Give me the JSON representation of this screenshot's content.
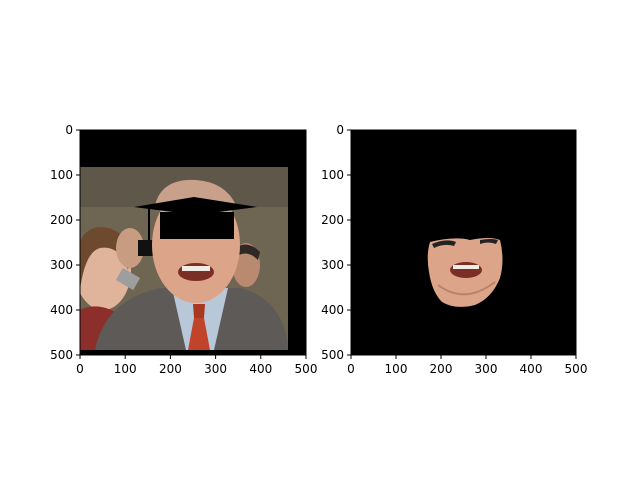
{
  "chart_data": [
    {
      "type": "image",
      "title": "",
      "xlabel": "",
      "ylabel": "",
      "xlim": [
        0,
        500
      ],
      "ylim": [
        500,
        0
      ],
      "xticks": [
        0,
        100,
        200,
        300,
        400,
        500
      ],
      "yticks": [
        0,
        100,
        200,
        300,
        400,
        500
      ],
      "xticklabels": [
        "0",
        "100",
        "200",
        "300",
        "400",
        "500"
      ],
      "yticklabels": [
        "0",
        "100",
        "200",
        "300",
        "400",
        "500"
      ],
      "grid": false,
      "content": "photo of smiling man in suit with red tie and a black graduation-cap mask over the eyes, other people in background",
      "background_color": "#000000"
    },
    {
      "type": "image",
      "title": "",
      "xlabel": "",
      "ylabel": "",
      "xlim": [
        0,
        500
      ],
      "ylim": [
        500,
        0
      ],
      "xticks": [
        0,
        100,
        200,
        300,
        400,
        500
      ],
      "yticks": [
        0,
        100,
        200,
        300,
        400,
        500
      ],
      "xticklabels": [
        "0",
        "100",
        "200",
        "300",
        "400",
        "500"
      ],
      "yticklabels": [
        "0",
        "100",
        "200",
        "300",
        "400",
        "500"
      ],
      "grid": false,
      "content": "segmented lower face region of the same man on a black background",
      "background_color": "#000000"
    }
  ],
  "colors": {
    "mask": "#000000",
    "wall": "#6e6552",
    "suit": "#5d5a58",
    "shirt": "#b9c8d8",
    "tie": "#c1442a",
    "skin": "#dca488"
  }
}
